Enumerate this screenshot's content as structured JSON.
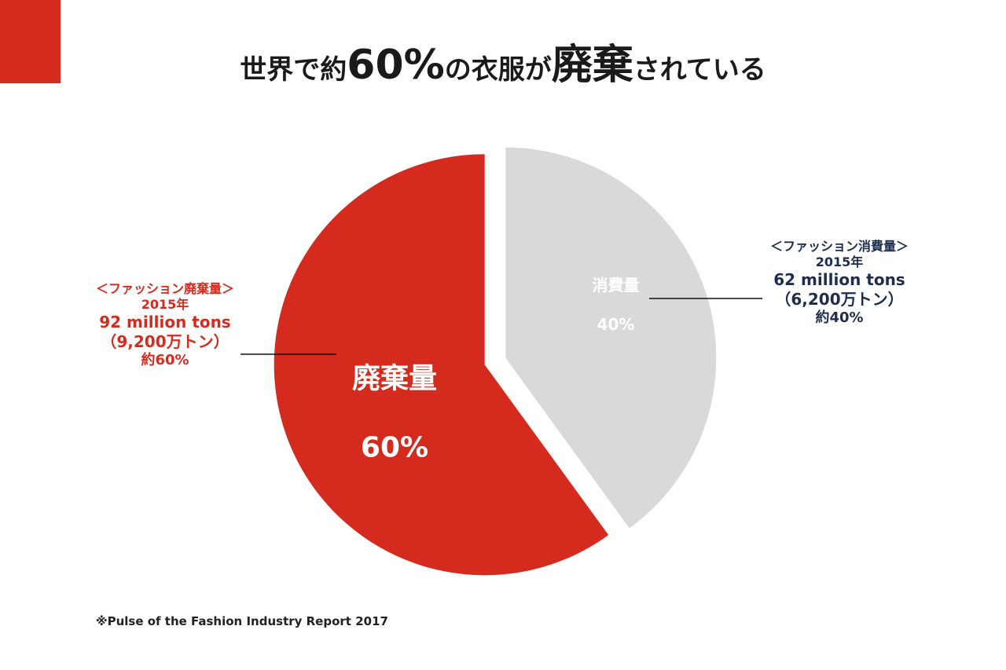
{
  "colors": {
    "accent": "#d42b1e",
    "gray": "#d9d9d9",
    "navy": "#1f2d4d",
    "white": "#ffffff"
  },
  "title": {
    "part1": "世界で約",
    "big1": "60%",
    "part2": "の衣服が",
    "big2": "廃棄",
    "part3": "されている"
  },
  "left_annotation": {
    "heading": "＜ファッション廃棄量＞",
    "year": "2015年",
    "amount_en": "92 million tons",
    "amount_jp": "（9,200万トン）",
    "approx": "約60%"
  },
  "right_annotation": {
    "heading": "＜ファッション消費量＞",
    "year": "2015年",
    "amount_en": "62 million tons",
    "amount_jp": "（6,200万トン）",
    "approx": "約40%"
  },
  "source": "※Pulse of the Fashion Industry Report 2017",
  "chart_data": {
    "type": "pie",
    "start_angle_deg": 0,
    "direction": "clockwise",
    "exploded": true,
    "slices": [
      {
        "label": "消費量",
        "value": 40,
        "value_label": "40%",
        "color": "#d9d9d9"
      },
      {
        "label": "廃棄量",
        "value": 60,
        "value_label": "60%",
        "color": "#d42b1e"
      }
    ]
  }
}
